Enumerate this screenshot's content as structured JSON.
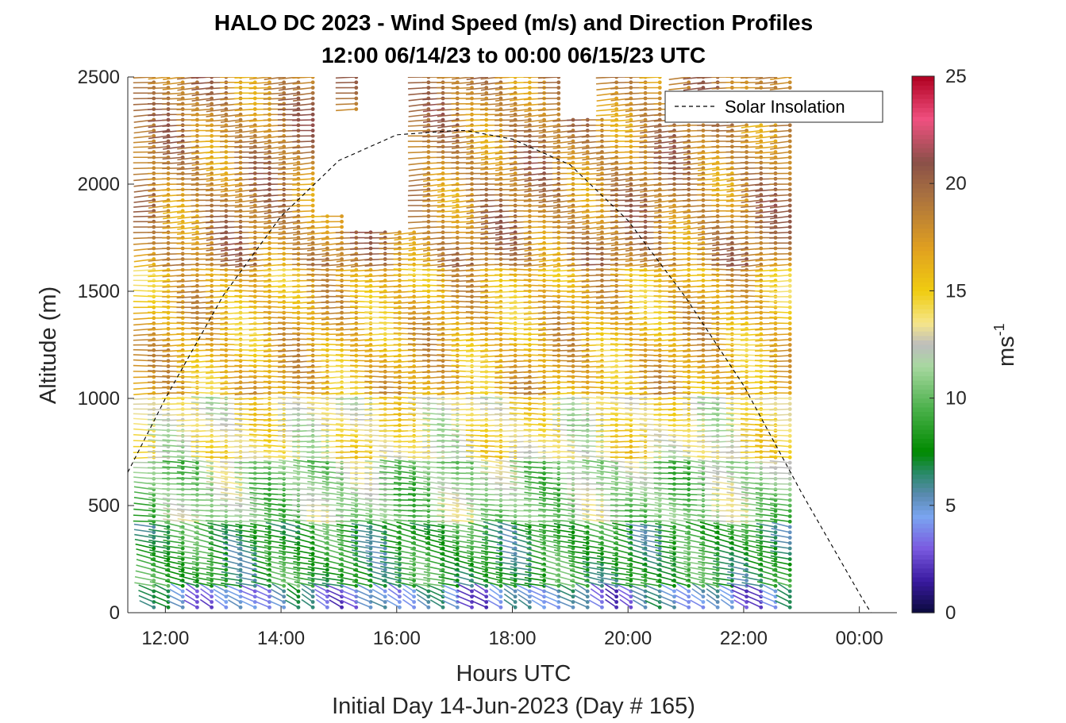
{
  "chart_data": {
    "type": "wind-barb-profile",
    "title": "HALO DC 2023 - Wind Speed (m/s) and Direction Profiles",
    "subtitle": "12:00 06/14/23 to 00:00 06/15/23  UTC",
    "xlabel": "Hours UTC",
    "xlabel2": "Initial Day 14-Jun-2023 (Day # 165)",
    "ylabel": "Altitude (m)",
    "xlim_hours": [
      11.35,
      24.65
    ],
    "ylim": [
      0,
      2500
    ],
    "x_ticks": [
      {
        "hour": 12,
        "label": "12:00"
      },
      {
        "hour": 14,
        "label": "14:00"
      },
      {
        "hour": 16,
        "label": "16:00"
      },
      {
        "hour": 18,
        "label": "18:00"
      },
      {
        "hour": 20,
        "label": "20:00"
      },
      {
        "hour": 22,
        "label": "22:00"
      },
      {
        "hour": 24,
        "label": "00:00"
      }
    ],
    "y_ticks": [
      {
        "value": 0,
        "label": "0"
      },
      {
        "value": 500,
        "label": "500"
      },
      {
        "value": 1000,
        "label": "1000"
      },
      {
        "value": 1500,
        "label": "1500"
      },
      {
        "value": 2000,
        "label": "2000"
      },
      {
        "value": 2500,
        "label": "2500"
      }
    ],
    "colorbar": {
      "label": "ms",
      "label_exponent": "-1",
      "range": [
        0,
        25
      ],
      "ticks": [
        {
          "value": 0,
          "label": "0"
        },
        {
          "value": 5,
          "label": "5"
        },
        {
          "value": 10,
          "label": "10"
        },
        {
          "value": 15,
          "label": "15"
        },
        {
          "value": 20,
          "label": "20"
        },
        {
          "value": 25,
          "label": "25"
        }
      ],
      "colors": [
        {
          "v": 0,
          "c": "#0a0a3c"
        },
        {
          "v": 1.5,
          "c": "#3a1aa0"
        },
        {
          "v": 3,
          "c": "#7a5ae0"
        },
        {
          "v": 4.5,
          "c": "#7aa5f0"
        },
        {
          "v": 5.5,
          "c": "#5a8ab0"
        },
        {
          "v": 6.5,
          "c": "#2a8a6a"
        },
        {
          "v": 7.5,
          "c": "#008a00"
        },
        {
          "v": 9.5,
          "c": "#4ab04a"
        },
        {
          "v": 11.5,
          "c": "#a8d8a0"
        },
        {
          "v": 12.5,
          "c": "#bdbdbd"
        },
        {
          "v": 13.5,
          "c": "#f5e68a"
        },
        {
          "v": 15,
          "c": "#f0cc10"
        },
        {
          "v": 17,
          "c": "#e0a020"
        },
        {
          "v": 19.5,
          "c": "#a87040"
        },
        {
          "v": 21,
          "c": "#8a5048"
        },
        {
          "v": 23,
          "c": "#f05080"
        },
        {
          "v": 25,
          "c": "#b00020"
        }
      ]
    },
    "legend": {
      "label": "Solar Insolation",
      "position": "top-right"
    },
    "solar_insolation": {
      "x_hours": [
        11.35,
        12,
        13,
        14,
        15,
        16,
        17,
        17.2,
        18,
        19,
        20,
        21,
        22,
        23,
        24,
        24.2,
        24.6
      ],
      "y": [
        655,
        1000,
        1480,
        1850,
        2110,
        2230,
        2250,
        2250,
        2210,
        2090,
        1830,
        1470,
        1060,
        560,
        90,
        0,
        0
      ]
    },
    "profiles": {
      "time_start_hours": 11.8,
      "time_step_hours": 0.25,
      "profile_count": 45,
      "altitude_step_m": 25,
      "note": "wind speed (m/s) vs altitude; direction per layer"
    },
    "speed_profile_layers": [
      {
        "alt_max_m": 100,
        "speed_ms": 4.5,
        "dir_deg": 220
      },
      {
        "alt_max_m": 400,
        "speed_ms": 8,
        "dir_deg": 245
      },
      {
        "alt_max_m": 700,
        "speed_ms": 11,
        "dir_deg": 260
      },
      {
        "alt_max_m": 1000,
        "speed_ms": 13.5,
        "dir_deg": 268
      },
      {
        "alt_max_m": 1600,
        "speed_ms": 16.5,
        "dir_deg": 272
      },
      {
        "alt_max_m": 2500,
        "speed_ms": 18.5,
        "dir_deg": 278
      }
    ]
  }
}
